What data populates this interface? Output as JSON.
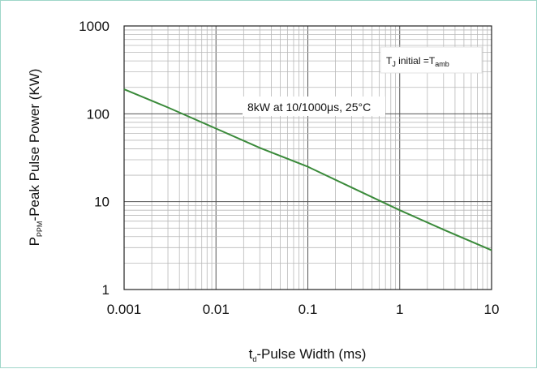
{
  "chart_data": {
    "type": "line",
    "x_scale": "log",
    "y_scale": "log",
    "xlim": [
      0.001,
      10
    ],
    "ylim": [
      1,
      1000
    ],
    "x_ticks": [
      "0.001",
      "0.01",
      "0.1",
      "1",
      "10"
    ],
    "y_ticks": [
      "1",
      "10",
      "100",
      "1000"
    ],
    "grid": true,
    "xlabel": {
      "main": "t",
      "sub": "d",
      "rest": "-Pulse Width (ms)"
    },
    "ylabel": {
      "main": "P",
      "sub": "PPM",
      "rest": "-Peak Pulse Power (KW)"
    },
    "annotation": "8kW at 10/1000μs, 25°C",
    "condition_box": {
      "t": "T",
      "t_sub": "J",
      "mid": " initial =T",
      "amb_sub": "amb"
    },
    "line_color": "#3a8a3a",
    "series": [
      {
        "x": [
          0.001,
          0.003,
          0.01,
          0.03,
          0.1,
          0.3,
          1,
          3,
          10
        ],
        "y": [
          190,
          118,
          68,
          41,
          25,
          14.5,
          8,
          4.8,
          2.8
        ]
      }
    ]
  }
}
